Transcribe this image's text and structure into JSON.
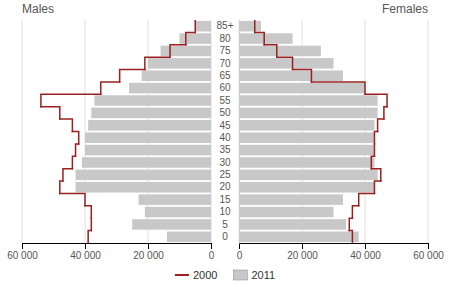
{
  "chart_data": [
    {
      "type": "bar",
      "orientation": "horizontal",
      "title": "Males",
      "categories": [
        "0",
        "5",
        "10",
        "15",
        "20",
        "25",
        "30",
        "35",
        "40",
        "45",
        "50",
        "55",
        "60",
        "65",
        "70",
        "75",
        "80",
        "85+"
      ],
      "series": [
        {
          "name": "2000",
          "type": "step",
          "color": "#9b2020",
          "values": [
            39000,
            38000,
            38000,
            40000,
            48000,
            47000,
            44000,
            43000,
            42000,
            44000,
            48000,
            54000,
            35000,
            29000,
            21000,
            13000,
            8000,
            5000
          ]
        },
        {
          "name": "2011",
          "type": "bar",
          "color": "#c8c8c8",
          "values": [
            14000,
            25000,
            21000,
            23000,
            43000,
            43000,
            41000,
            40000,
            40000,
            39000,
            38000,
            37000,
            26000,
            22000,
            20000,
            16000,
            10000,
            5000
          ]
        }
      ],
      "xlim": [
        60000,
        0
      ],
      "xticks": [
        {
          "value": 60000,
          "label": "60 000"
        },
        {
          "value": 40000,
          "label": "40 000"
        },
        {
          "value": 20000,
          "label": "20 000"
        },
        0
      ],
      "grid": true,
      "tick_labels": "x",
      "legend": "bottom"
    },
    {
      "type": "bar",
      "orientation": "horizontal",
      "title": "Females",
      "categories": [
        "0",
        "5",
        "10",
        "15",
        "20",
        "25",
        "30",
        "35",
        "40",
        "45",
        "50",
        "55",
        "60",
        "65",
        "70",
        "75",
        "80",
        "85+"
      ],
      "series": [
        {
          "type": "step",
          "color": "#9b2020",
          "values": [
            36000,
            35000,
            36000,
            38000,
            43000,
            45000,
            42000,
            43000,
            43000,
            44000,
            46000,
            47000,
            40000,
            23000,
            17000,
            12000,
            8000,
            5000
          ]
        },
        {
          "type": "bar",
          "color": "#c8c8c8",
          "values": [
            38000,
            34000,
            30000,
            33000,
            43000,
            44000,
            43000,
            43000,
            43000,
            43000,
            44000,
            44000,
            40000,
            33000,
            30000,
            26000,
            17000,
            7000
          ]
        }
      ],
      "xlim": [
        0,
        60000
      ],
      "xticks": [
        0,
        {
          "value": 20000,
          "label": "20 000"
        },
        {
          "value": 40000,
          "label": "40 000"
        },
        {
          "value": 60000,
          "label": "60 000"
        }
      ],
      "grid": true
    }
  ]
}
